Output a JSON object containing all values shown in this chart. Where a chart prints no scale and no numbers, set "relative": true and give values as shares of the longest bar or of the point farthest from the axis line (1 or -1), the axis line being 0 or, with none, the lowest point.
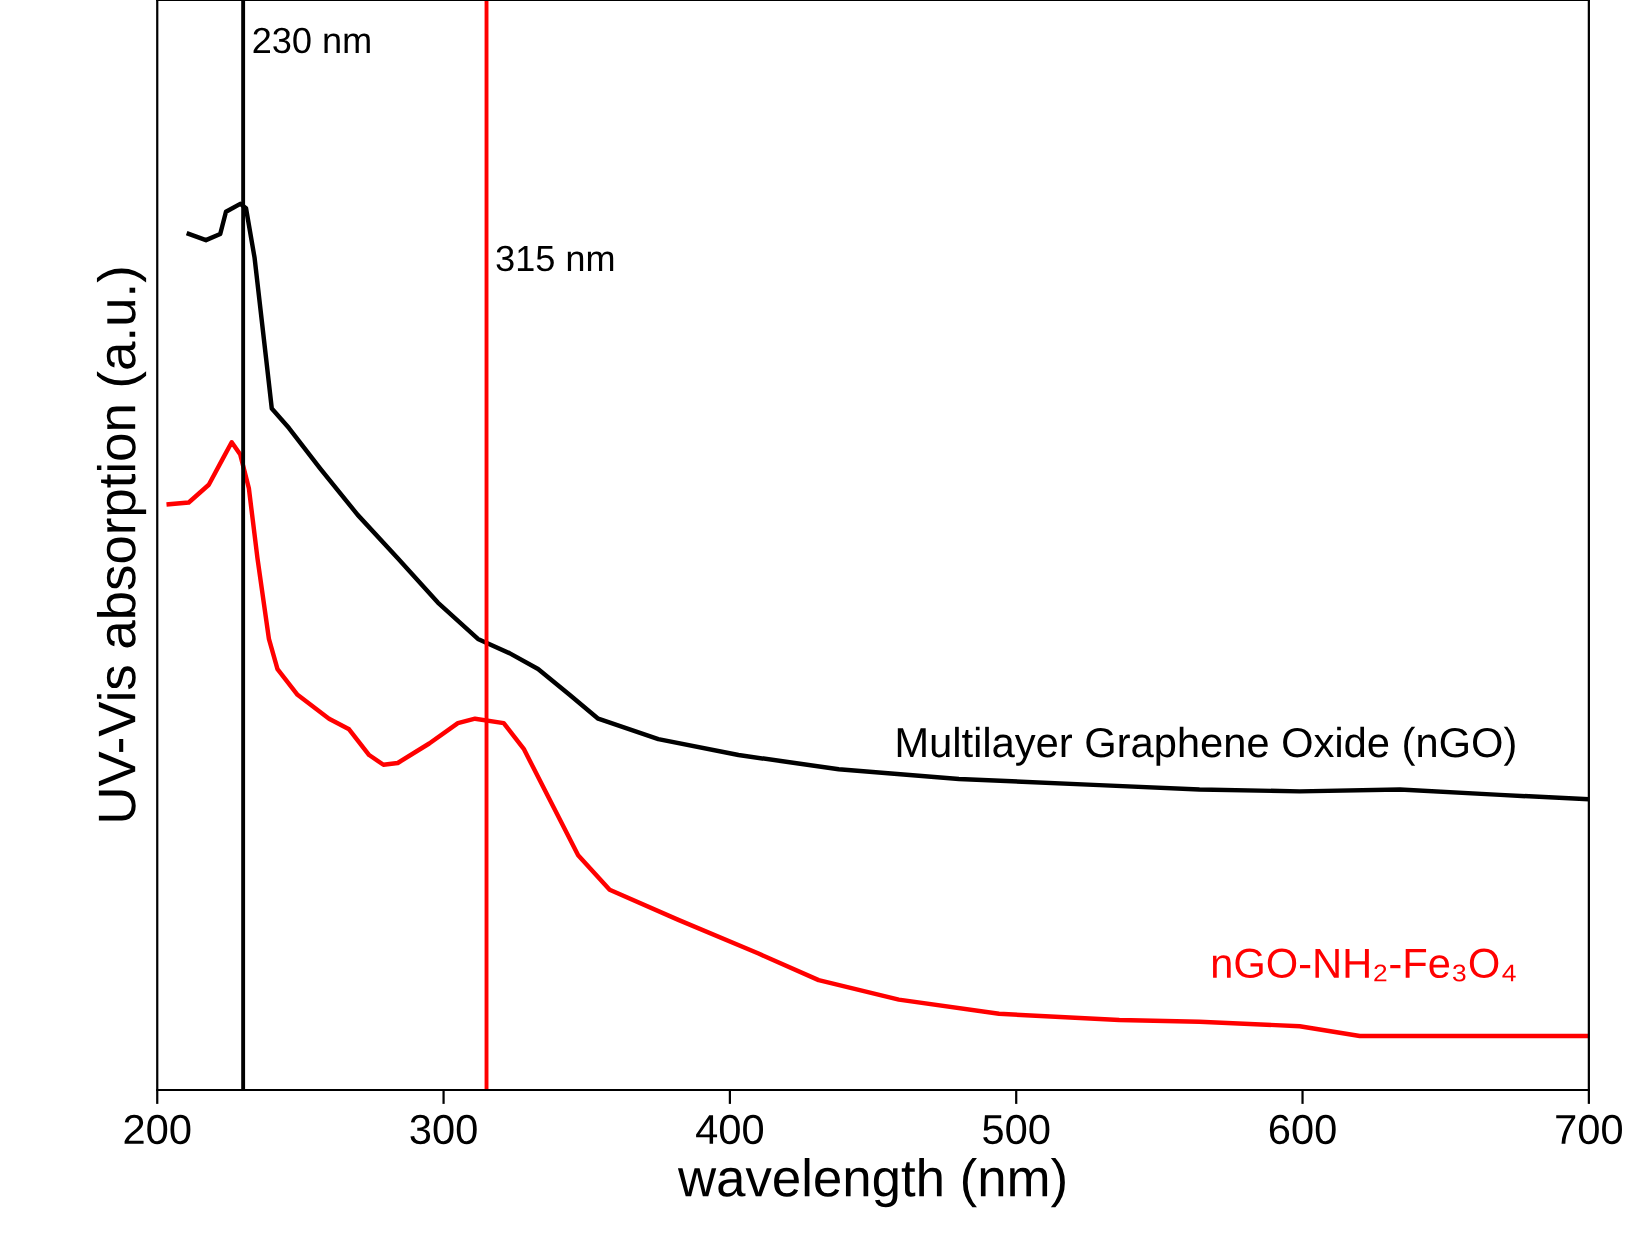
{
  "chart_data": {
    "type": "line",
    "relative": true,
    "xlabel": "wavelength (nm)",
    "ylabel": "UV-Vis absorption (a.u.)",
    "xlim": [
      200,
      700
    ],
    "xticks": [
      200,
      300,
      400,
      500,
      600,
      700
    ],
    "grid": false,
    "legend": false,
    "marker": "none",
    "line_style": "solid",
    "series": [
      {
        "name": "Multilayer Graphene Oxide (nGO)",
        "color": "#000000",
        "x": [
          211,
          217,
          222,
          224,
          229,
          231,
          234,
          238,
          240,
          246,
          257,
          270,
          284,
          298,
          312,
          323,
          333,
          344,
          354,
          375,
          403,
          438,
          480,
          529,
          564,
          599,
          634,
          669,
          700
        ],
        "values": [
          0.966,
          0.959,
          0.966,
          0.991,
          1.0,
          0.995,
          0.939,
          0.826,
          0.769,
          0.747,
          0.701,
          0.649,
          0.6,
          0.55,
          0.509,
          0.493,
          0.475,
          0.446,
          0.419,
          0.396,
          0.378,
          0.362,
          0.351,
          0.344,
          0.339,
          0.337,
          0.339,
          0.333,
          0.328
        ]
      },
      {
        "name": "nGO-NH₂-Fe₃O₄",
        "color": "#ff0000",
        "x": [
          204,
          211,
          218,
          223,
          226,
          229,
          232,
          235,
          239,
          242,
          249,
          260,
          267,
          274,
          279,
          284,
          295,
          305,
          311,
          321,
          328,
          337,
          347,
          358,
          382,
          410,
          431,
          459,
          494,
          536,
          564,
          599,
          620,
          700
        ],
        "values": [
          0.661,
          0.663,
          0.683,
          0.713,
          0.731,
          0.717,
          0.679,
          0.6,
          0.509,
          0.475,
          0.446,
          0.419,
          0.407,
          0.378,
          0.367,
          0.369,
          0.391,
          0.414,
          0.419,
          0.414,
          0.385,
          0.328,
          0.265,
          0.226,
          0.192,
          0.154,
          0.124,
          0.102,
          0.086,
          0.079,
          0.077,
          0.072,
          0.061,
          0.061
        ]
      }
    ],
    "ref_lines": [
      {
        "axis": "x",
        "value": 230,
        "label": "230 nm",
        "color": "#000000"
      },
      {
        "axis": "x",
        "value": 315,
        "label": "315 nm",
        "color": "#ff0000"
      }
    ]
  }
}
